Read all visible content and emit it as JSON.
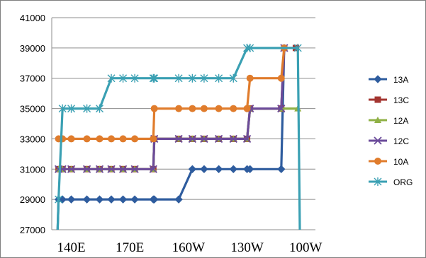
{
  "chart_data": {
    "type": "line",
    "title": "",
    "xlabel": "",
    "ylabel": "",
    "grid": true,
    "legend_position": "right",
    "ylim": [
      27000,
      41000
    ],
    "y_ticks": [
      27000,
      29000,
      31000,
      33000,
      35000,
      37000,
      39000,
      41000
    ],
    "xlim": [
      130,
      265
    ],
    "x_ticks": [
      {
        "label": "140E",
        "value": 140
      },
      {
        "label": "170E",
        "value": 170
      },
      {
        "label": "160W",
        "value": 200
      },
      {
        "label": "130W",
        "value": 230
      },
      {
        "label": "100W",
        "value": 260
      }
    ],
    "series": [
      {
        "name": "13A",
        "color": "#2e5c9e",
        "marker": "diamond",
        "x": [
          133,
          133.5,
          135.5,
          140,
          148,
          154.5,
          160.5,
          166.5,
          172.5,
          182,
          182.5,
          195,
          202,
          208,
          215.5,
          223,
          230,
          231.5,
          247.5,
          249
        ],
        "y": [
          27000,
          29000,
          29000,
          29000,
          29000,
          29000,
          29000,
          29000,
          29000,
          29000,
          29000,
          29000,
          31000,
          31000,
          31000,
          31000,
          31000,
          31000,
          31000,
          39000
        ]
      },
      {
        "name": "13C",
        "color": "#a33530",
        "marker": "square",
        "x": [
          133.5,
          135.5,
          140,
          148,
          154.5,
          160.5,
          166.5,
          172.5,
          182,
          182.5,
          195,
          202,
          208,
          215.5,
          223,
          230,
          231.5,
          247.5,
          249,
          255
        ],
        "y": [
          31000,
          31000,
          31000,
          31000,
          31000,
          31000,
          31000,
          31000,
          31000,
          33000,
          33000,
          33000,
          33000,
          33000,
          33000,
          33000,
          35000,
          35000,
          39000,
          39000
        ]
      },
      {
        "name": "12A",
        "color": "#8fb045",
        "marker": "triangle",
        "x": [
          133.5,
          135.5,
          140,
          148,
          154.5,
          160.5,
          166.5,
          172.5,
          182,
          182.5,
          195,
          202,
          208,
          215.5,
          223,
          230,
          231.5,
          247.5,
          256
        ],
        "y": [
          31000,
          31000,
          31000,
          31000,
          31000,
          31000,
          31000,
          31000,
          31000,
          33000,
          33000,
          33000,
          33000,
          33000,
          33000,
          33000,
          35000,
          35000,
          35000
        ]
      },
      {
        "name": "12C",
        "color": "#6b4b9a",
        "marker": "x",
        "x": [
          133.5,
          135.5,
          140,
          148,
          154.5,
          160.5,
          166.5,
          172.5,
          182,
          182.5,
          195,
          202,
          208,
          215.5,
          223,
          230,
          231.5,
          247.5,
          249
        ],
        "y": [
          31000,
          31000,
          31000,
          31000,
          31000,
          31000,
          31000,
          31000,
          31000,
          33000,
          33000,
          33000,
          33000,
          33000,
          33000,
          33000,
          35000,
          35000,
          39000
        ]
      },
      {
        "name": "10A",
        "color": "#e07c2c",
        "marker": "circle",
        "x": [
          133.5,
          135.5,
          140,
          148,
          154.5,
          160.5,
          166.5,
          172.5,
          182,
          182.5,
          195,
          202,
          208,
          215.5,
          223,
          230,
          231.5,
          247.5,
          249
        ],
        "y": [
          33000,
          33000,
          33000,
          33000,
          33000,
          33000,
          33000,
          33000,
          33000,
          35000,
          35000,
          35000,
          35000,
          35000,
          35000,
          35000,
          37000,
          37000,
          39000
        ]
      },
      {
        "name": "ORG",
        "color": "#3aa0b3",
        "marker": "asterisk",
        "x": [
          133,
          133.5,
          135.5,
          140,
          148,
          154.5,
          160.5,
          166.5,
          172.5,
          182,
          182.5,
          195,
          202,
          208,
          215.5,
          223,
          230,
          231.5,
          256,
          257
        ],
        "y": [
          27000,
          29000,
          35000,
          35000,
          35000,
          35000,
          37000,
          37000,
          37000,
          37000,
          37000,
          37000,
          37000,
          37000,
          37000,
          37000,
          39000,
          39000,
          39000,
          27000
        ]
      }
    ]
  }
}
